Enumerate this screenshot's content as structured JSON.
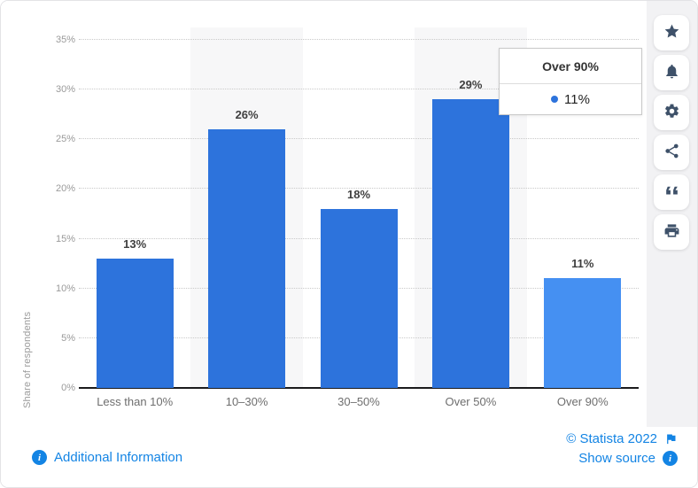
{
  "chart_data": {
    "type": "bar",
    "title": "",
    "xlabel": "",
    "ylabel": "Share of respondents",
    "categories": [
      "Less than 10%",
      "10–30%",
      "30–50%",
      "Over 50%",
      "Over 90%"
    ],
    "values": [
      13,
      26,
      18,
      29,
      11
    ],
    "value_labels": [
      "13%",
      "26%",
      "18%",
      "29%",
      "11%"
    ],
    "ylim": [
      0,
      35
    ],
    "ytick_step": 5,
    "ytick_suffix": "%",
    "grid": "horizontal-dotted",
    "legend_position": "none",
    "bar_color": "#2d73dc",
    "highlight_bar_color": "#4590f2",
    "highlighted_index": 4,
    "band_indices": [
      1,
      3
    ]
  },
  "tooltip": {
    "title": "Over 90%",
    "value": "11%",
    "dot_color": "#2d73dc"
  },
  "sidebar": {
    "icons": [
      "star",
      "bell",
      "settings-gear",
      "share",
      "citation-quote",
      "print"
    ]
  },
  "footer": {
    "additional_information": "Additional Information",
    "copyright": "© Statista 2022",
    "show_source": "Show source"
  },
  "colors": {
    "link_blue": "#1384e4",
    "icon_navy": "#3e5169",
    "grid_gray": "#c9c9c9",
    "band_gray": "#f7f7f8",
    "strip_gray": "#f2f2f4"
  }
}
